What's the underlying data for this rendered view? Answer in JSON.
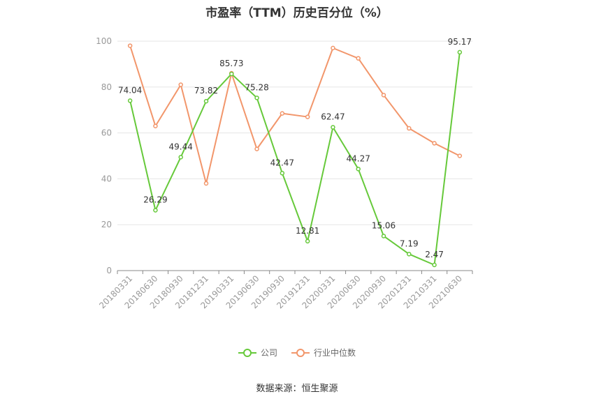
{
  "chart_data": {
    "type": "line",
    "title": "市盈率（TTM）历史百分位（%）",
    "categories": [
      "20180331",
      "20180630",
      "20180930",
      "20181231",
      "20190331",
      "20190630",
      "20190930",
      "20191231",
      "20200331",
      "20200630",
      "20200930",
      "20201231",
      "20210331",
      "20210630"
    ],
    "series": [
      {
        "name": "公司",
        "color": "#66c93a",
        "values": [
          74.04,
          26.29,
          49.44,
          73.82,
          85.73,
          75.28,
          42.47,
          12.81,
          62.47,
          44.27,
          15.06,
          7.19,
          2.47,
          95.17
        ],
        "labels": [
          "74.04",
          "26.29",
          "49.44",
          "73.82",
          "85.73",
          "75.28",
          "42.47",
          "12.81",
          "62.47",
          "44.27",
          "15.06",
          "7.19",
          "2.47",
          "95.17"
        ]
      },
      {
        "name": "行业中位数",
        "color": "#f2966b",
        "values": [
          98.0,
          63.0,
          81.0,
          38.0,
          86.0,
          53.0,
          68.5,
          67.0,
          97.0,
          92.5,
          76.5,
          62.0,
          55.5,
          50.0
        ]
      }
    ],
    "yticks": [
      "0",
      "20",
      "40",
      "60",
      "80",
      "100"
    ],
    "ylim": [
      0,
      100
    ],
    "grid": true,
    "legend_position": "bottom"
  },
  "source": "数据来源：恒生聚源"
}
